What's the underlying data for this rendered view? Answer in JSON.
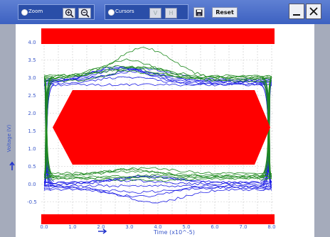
{
  "toolbar": {
    "zoom_label": "Zoom",
    "zoom_in_icon": "zoom-in-icon",
    "zoom_out_icon": "zoom-out-icon",
    "cursors_label": "Cursors",
    "v_label": "V",
    "h_label": "H",
    "save_icon": "save-icon",
    "reset_label": "Reset",
    "minimize_icon": "minimize-icon",
    "close_icon": "close-icon"
  },
  "colors": {
    "toolbar": "#4b6fcb",
    "mask": "#ff0000",
    "trace_blue": "#1a1ae6",
    "trace_green": "#1f8a1f",
    "axis_text": "#3a57c9"
  },
  "chart_data": {
    "type": "line",
    "title": "",
    "xlabel": "Time (x10^-5)",
    "ylabel": "Voltage (V)",
    "xlim": [
      0.0,
      8.0
    ],
    "ylim": [
      -0.6,
      4.1
    ],
    "x_ticks": [
      "0.0",
      "1.0",
      "2.0",
      "3.0",
      "4.0",
      "5.0",
      "6.0",
      "7.0",
      "8.0"
    ],
    "y_ticks": [
      "4.0",
      "3.5",
      "3.0",
      "2.5",
      "2.0",
      "1.5",
      "1.0",
      "0.5",
      "0.0",
      "-0.5"
    ],
    "grid": true,
    "mask_hexagon": [
      [
        0.3,
        1.6
      ],
      [
        1.0,
        2.65
      ],
      [
        7.4,
        2.65
      ],
      [
        7.95,
        1.6
      ],
      [
        7.4,
        0.55
      ],
      [
        1.0,
        0.55
      ]
    ],
    "top_band_ymin": 3.95,
    "bottom_band_ymax": -0.9,
    "series": [
      {
        "color": "blue",
        "high": 2.85,
        "low": -0.05,
        "bump_high": 0.45,
        "bump_low": 0.0
      },
      {
        "color": "blue",
        "high": 2.9,
        "low": -0.1,
        "bump_high": 0.35,
        "bump_low": -0.25
      },
      {
        "color": "blue",
        "high": 2.8,
        "low": 0.05,
        "bump_high": 0.0,
        "bump_low": 0.15
      },
      {
        "color": "blue",
        "high": 2.95,
        "low": -0.15,
        "bump_high": 0.3,
        "bump_low": -0.35
      },
      {
        "color": "blue",
        "high": 2.88,
        "low": 0.0,
        "bump_high": 0.4,
        "bump_low": 0.1
      },
      {
        "color": "blue",
        "high": 2.82,
        "low": -0.08,
        "bump_high": 0.2,
        "bump_low": -0.15
      },
      {
        "color": "blue",
        "high": 2.92,
        "low": 0.03,
        "bump_high": 0.25,
        "bump_low": 0.2
      },
      {
        "color": "green",
        "high": 2.98,
        "low": 0.2,
        "bump_high": 0.85,
        "bump_low": 0.05
      },
      {
        "color": "green",
        "high": 3.02,
        "low": 0.25,
        "bump_high": 0.3,
        "bump_low": 0.1
      },
      {
        "color": "green",
        "high": 2.95,
        "low": 0.18,
        "bump_high": 0.55,
        "bump_low": 0.0
      },
      {
        "color": "green",
        "high": 3.05,
        "low": 0.3,
        "bump_high": 0.25,
        "bump_low": 0.15
      },
      {
        "color": "green",
        "high": 2.9,
        "low": 0.15,
        "bump_high": 0.4,
        "bump_low": -0.05
      },
      {
        "color": "green",
        "high": 3.0,
        "low": 0.22,
        "bump_high": 0.2,
        "bump_low": 0.2
      }
    ]
  }
}
